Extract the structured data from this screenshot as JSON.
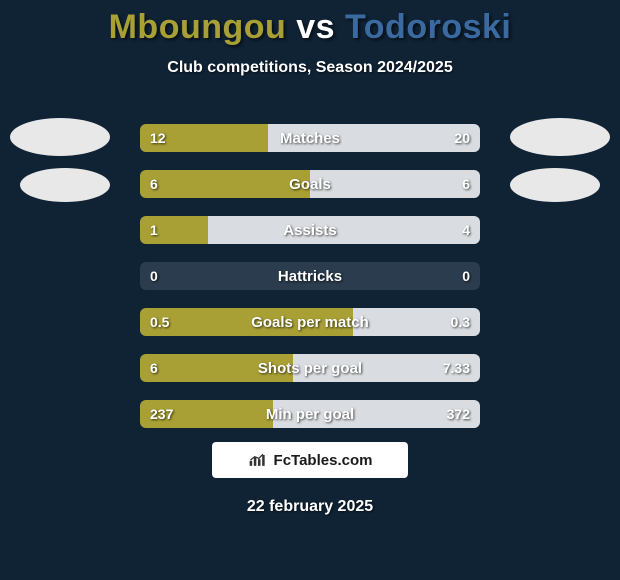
{
  "title": {
    "player1": "Mboungou",
    "vs": "vs",
    "player2": "Todoroski",
    "player1_color": "#a8a035",
    "vs_color": "#ffffff",
    "player2_color": "#3a6aa0"
  },
  "subtitle": "Club competitions, Season 2024/2025",
  "colors": {
    "background": "#102335",
    "bar_left": "#a8a035",
    "bar_right": "#d9dce0",
    "bar_track": "#2a3c4e",
    "avatar": "#e8e8e8"
  },
  "bars": [
    {
      "label": "Matches",
      "left_val": "12",
      "right_val": "20",
      "left_pct": 37.5,
      "right_pct": 62.5
    },
    {
      "label": "Goals",
      "left_val": "6",
      "right_val": "6",
      "left_pct": 50,
      "right_pct": 50
    },
    {
      "label": "Assists",
      "left_val": "1",
      "right_val": "4",
      "left_pct": 20,
      "right_pct": 80
    },
    {
      "label": "Hattricks",
      "left_val": "0",
      "right_val": "0",
      "left_pct": 0,
      "right_pct": 0
    },
    {
      "label": "Goals per match",
      "left_val": "0.5",
      "right_val": "0.3",
      "left_pct": 62.5,
      "right_pct": 37.5
    },
    {
      "label": "Shots per goal",
      "left_val": "6",
      "right_val": "7.33",
      "left_pct": 45,
      "right_pct": 55
    },
    {
      "label": "Min per goal",
      "left_val": "237",
      "right_val": "372",
      "left_pct": 39,
      "right_pct": 61
    }
  ],
  "logo": {
    "text": "FcTables.com"
  },
  "date": "22 february 2025"
}
